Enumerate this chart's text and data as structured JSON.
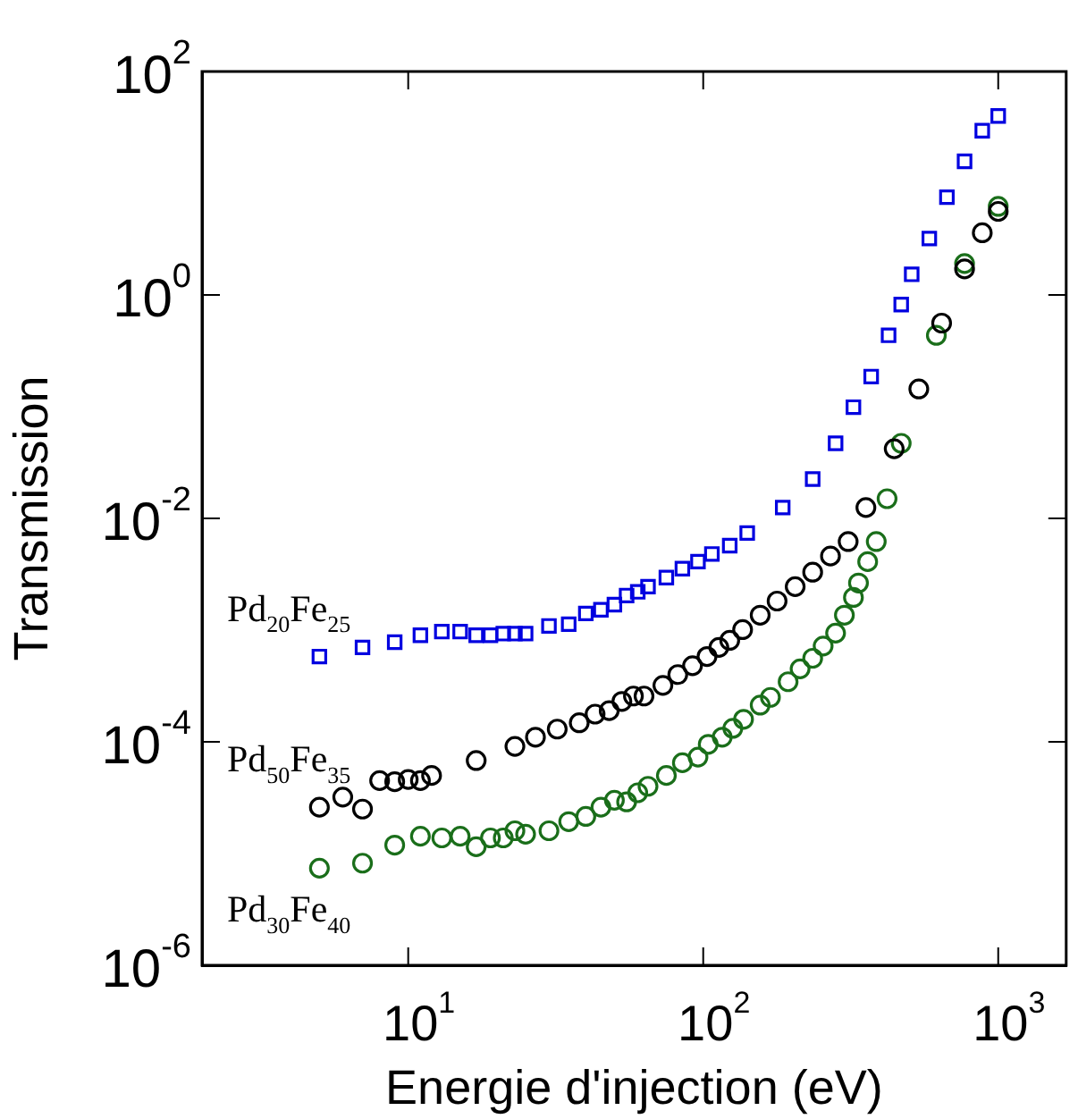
{
  "chart_data": {
    "type": "scatter",
    "xlabel": "Energie d'injection (eV)",
    "ylabel": "Transmission",
    "log": "xy",
    "grid": false,
    "legend": false,
    "xlim": [
      2,
      1700
    ],
    "ylim": [
      1e-06,
      100
    ],
    "xticks": [
      {
        "value": 10,
        "label": "10$^{1}$"
      },
      {
        "value": 100,
        "label": "10$^{2}$"
      },
      {
        "value": 1000,
        "label": "10$^{3}$"
      }
    ],
    "yticks": [
      {
        "value": 1e-06,
        "label": "10$^{-6}$"
      },
      {
        "value": 0.0001,
        "label": "10$^{-4}$"
      },
      {
        "value": 0.01,
        "label": "10$^{-2}$"
      },
      {
        "value": 1,
        "label": "10$^{0}$"
      },
      {
        "value": 100,
        "label": "10$^{2}$"
      }
    ],
    "series": [
      {
        "name": "Pd$_{20}$Fe$_{25}$",
        "color": "#0000e0",
        "marker": "square",
        "x": [
          5,
          7,
          9,
          11,
          13,
          15,
          17,
          19,
          21,
          23,
          25,
          30,
          35,
          40,
          45,
          50,
          55,
          60,
          65,
          75,
          85,
          96,
          107,
          123,
          141,
          186,
          235,
          281,
          323,
          371,
          425,
          469,
          509,
          584,
          670,
          769,
          883,
          1000
        ],
        "values": [
          0.00058,
          0.0007,
          0.00078,
          0.0009,
          0.00097,
          0.00097,
          0.0009,
          0.0009,
          0.00093,
          0.00093,
          0.00093,
          0.00109,
          0.00113,
          0.00141,
          0.00152,
          0.00169,
          0.00204,
          0.0022,
          0.00245,
          0.00295,
          0.00355,
          0.0041,
          0.0048,
          0.0057,
          0.0074,
          0.0125,
          0.0225,
          0.047,
          0.099,
          0.186,
          0.435,
          0.82,
          1.53,
          3.2,
          7.5,
          15.7,
          29.5,
          40
        ]
      },
      {
        "name": "Pd$_{50}$Fe$_{35}$",
        "color": "#000000",
        "marker": "circle",
        "x": [
          5,
          6,
          7,
          8,
          9,
          10,
          11,
          12,
          17,
          23,
          27,
          32,
          38,
          43,
          48,
          53,
          58,
          63,
          73,
          82,
          92,
          103,
          113,
          123,
          136,
          156,
          178,
          205,
          235,
          270,
          310,
          356,
          444,
          538,
          643,
          769,
          883,
          1000
        ],
        "values": [
          2.6e-05,
          3.2e-05,
          2.5e-05,
          4.5e-05,
          4.4e-05,
          4.6e-05,
          4.5e-05,
          5e-05,
          6.8e-05,
          9.1e-05,
          0.00011,
          0.00013,
          0.000148,
          0.000177,
          0.00019,
          0.00023,
          0.000257,
          0.000257,
          0.00032,
          0.0004,
          0.00048,
          0.00058,
          0.0007,
          0.00081,
          0.00101,
          0.00136,
          0.00182,
          0.00245,
          0.0033,
          0.0046,
          0.0062,
          0.0125,
          0.042,
          0.144,
          0.56,
          1.71,
          3.6,
          5.6
        ]
      },
      {
        "name": "Pd$_{30}$Fe$_{40}$",
        "color": "#1a6e1a",
        "marker": "circle",
        "x": [
          5,
          7,
          9,
          11,
          13,
          15,
          17,
          19,
          21,
          23,
          25,
          30,
          35,
          40,
          45,
          50,
          55,
          60,
          65,
          75,
          85,
          96,
          104,
          116,
          126,
          137,
          156,
          169,
          194,
          213,
          235,
          255,
          281,
          301,
          323,
          336,
          361,
          386,
          420,
          469,
          617,
          769,
          883,
          1000
        ],
        "values": [
          7.4e-06,
          8.2e-06,
          1.19e-05,
          1.43e-05,
          1.38e-05,
          1.43e-05,
          1.15e-05,
          1.38e-05,
          1.38e-05,
          1.6e-05,
          1.49e-05,
          1.6e-05,
          1.93e-05,
          2.15e-05,
          2.6e-05,
          3e-05,
          2.9e-05,
          3.5e-05,
          4e-05,
          5e-05,
          6.5e-05,
          7.3e-05,
          9.5e-05,
          0.00011,
          0.000132,
          0.000159,
          0.000213,
          0.00025,
          0.000345,
          0.00045,
          0.00056,
          0.00072,
          0.00094,
          0.00136,
          0.00196,
          0.00264,
          0.0041,
          0.0062,
          0.015,
          0.047,
          0.435,
          1.91,
          null,
          6.2
        ]
      }
    ]
  }
}
